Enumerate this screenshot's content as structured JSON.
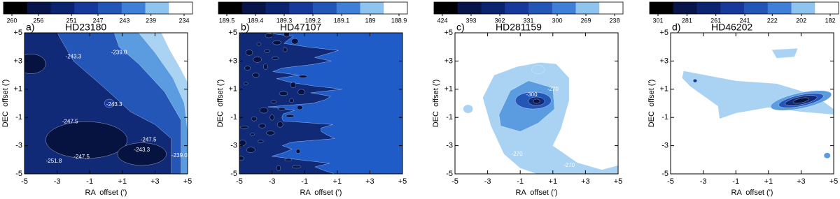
{
  "chart_data": [
    {
      "type": "contour",
      "panel_label": "a)",
      "title": "HD23180",
      "colorbar_ticks": [
        260,
        256,
        251,
        247,
        243,
        239,
        234
      ],
      "xlim": [
        -5,
        5
      ],
      "ylim": [
        -5,
        5
      ],
      "xticks": [
        -5,
        -3,
        -1,
        {
          "value": 1,
          "label": "+1"
        },
        {
          "value": 3,
          "label": "+3"
        },
        {
          "value": 5,
          "label": "+5"
        }
      ],
      "yticks": [
        -5,
        -3,
        -1,
        {
          "value": 1,
          "label": "+1"
        },
        {
          "value": 3,
          "label": "+3"
        },
        {
          "value": 5,
          "label": "+5"
        }
      ],
      "xlabel": "RA  offset (')",
      "ylabel": "DEC  offset (')",
      "contour_labels": [
        "-243.3",
        "-239.0",
        "-243.3",
        "-247.5",
        "-251.8",
        "-247.5",
        "-247.5",
        "-243.3",
        "-239.0"
      ]
    },
    {
      "type": "contour",
      "panel_label": "b)",
      "title": "HD47107",
      "colorbar_ticks": [
        189.5,
        189.4,
        189.3,
        189.2,
        189.1,
        189.0,
        188.9
      ],
      "xlim": [
        -5,
        5
      ],
      "ylim": [
        -5,
        5
      ],
      "xticks": [
        -5,
        -3,
        -1,
        {
          "value": 1,
          "label": "+1"
        },
        {
          "value": 3,
          "label": "+3"
        },
        {
          "value": 5,
          "label": "+5"
        }
      ],
      "yticks": [
        -5,
        -3,
        -1,
        {
          "value": 1,
          "label": "+1"
        },
        {
          "value": 3,
          "label": "+3"
        },
        {
          "value": 5,
          "label": "+5"
        }
      ],
      "xlabel": "RA  offset (')",
      "ylabel": "DEC  offset (')",
      "contour_labels": []
    },
    {
      "type": "contour",
      "panel_label": "c)",
      "title": "HD281159",
      "colorbar_ticks": [
        424,
        393,
        362,
        331,
        300,
        269,
        238
      ],
      "xlim": [
        -5,
        5
      ],
      "ylim": [
        -5,
        5
      ],
      "xticks": [
        -5,
        -3,
        -1,
        {
          "value": 1,
          "label": "+1"
        },
        {
          "value": 3,
          "label": "+3"
        },
        {
          "value": 5,
          "label": "+5"
        }
      ],
      "yticks": [
        -5,
        -3,
        -1,
        {
          "value": 1,
          "label": "+1"
        },
        {
          "value": 3,
          "label": "+3"
        },
        {
          "value": 5,
          "label": "+5"
        }
      ],
      "xlabel": "RA  offset (')",
      "ylabel": "DEC  offset (')",
      "contour_labels": [
        "-300",
        "-270",
        "-270",
        "-270"
      ]
    },
    {
      "type": "contour",
      "panel_label": "d)",
      "title": "HD46202",
      "colorbar_ticks": [
        301,
        281,
        261,
        241,
        222,
        202,
        182
      ],
      "xlim": [
        -5,
        5
      ],
      "ylim": [
        -5,
        5
      ],
      "xticks": [
        -5,
        -3,
        -1,
        {
          "value": 1,
          "label": "+1"
        },
        {
          "value": 3,
          "label": "+3"
        },
        {
          "value": 5,
          "label": "+5"
        }
      ],
      "yticks": [
        -5,
        -3,
        -1,
        {
          "value": 1,
          "label": "+1"
        },
        {
          "value": 3,
          "label": "+3"
        },
        {
          "value": 5,
          "label": "+5"
        }
      ],
      "xlabel": "RA  offset (')",
      "ylabel": "DEC  offset (')",
      "contour_labels": []
    }
  ]
}
